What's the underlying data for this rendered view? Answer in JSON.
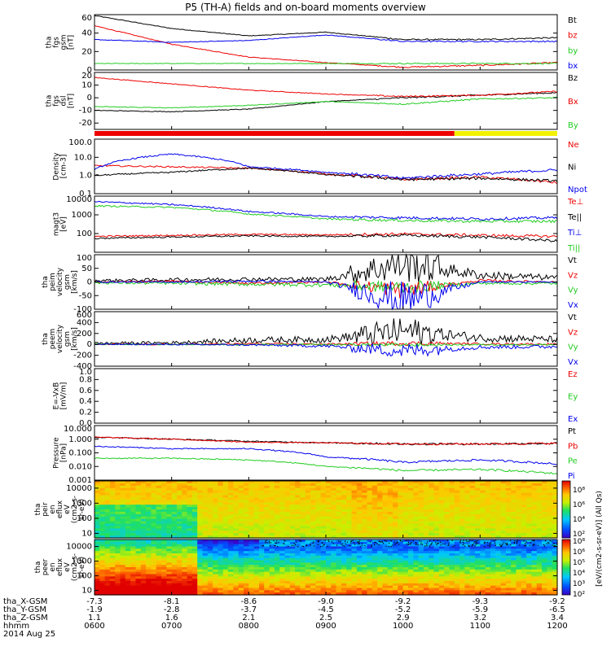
{
  "title": "P5 (TH-A) fields and on-board moments overview",
  "colors": {
    "black": "#000000",
    "red": "#ee0000",
    "green": "#22cc22",
    "blue": "#0000ee",
    "yellow": "#f2f200",
    "bar_red": "#ee0000"
  },
  "time_axis": {
    "rows": [
      {
        "label": "tha_X-GSM",
        "values": [
          "-7.3",
          "-8.1",
          "-8.6",
          "-9.0",
          "-9.2",
          "-9.3",
          "-9.2"
        ]
      },
      {
        "label": "tha_Y-GSM",
        "values": [
          "-1.9",
          "-2.8",
          "-3.7",
          "-4.5",
          "-5.2",
          "-5.9",
          "-6.5"
        ]
      },
      {
        "label": "tha_Z-GSM",
        "values": [
          "1.1",
          "1.6",
          "2.1",
          "2.5",
          "2.9",
          "3.2",
          "3.4"
        ]
      },
      {
        "label": "hhmm",
        "values": [
          "0600",
          "0700",
          "0800",
          "0900",
          "1000",
          "1100",
          "1200"
        ]
      }
    ],
    "date": "2014 Aug 25"
  },
  "mode_bar": {
    "segments": [
      {
        "color": "red",
        "from": "0600",
        "to": "1040"
      },
      {
        "color": "yellow",
        "from": "1040",
        "to": "1200"
      }
    ]
  },
  "colorbar": {
    "label": "[eV/(cm2-s-sr-eV)] (All Qs)",
    "upper_ticks": [
      "10⁸",
      "10⁶",
      "10⁴",
      "10²"
    ],
    "lower_ticks": [
      "10⁸",
      "10⁶",
      "10⁵",
      "10⁴",
      "10³",
      "10²"
    ]
  },
  "chart_data": [
    {
      "type": "line",
      "ylabel": [
        "tha",
        "fgs",
        "gsm",
        "[nT]"
      ],
      "ylim": [
        0,
        60
      ],
      "ticks": [
        "60",
        "40",
        "20",
        "0"
      ],
      "legend": [
        {
          "name": "Bt",
          "color": "black"
        },
        {
          "name": "bz",
          "color": "red"
        },
        {
          "name": "by",
          "color": "green"
        },
        {
          "name": "bx",
          "color": "blue"
        }
      ],
      "x": [
        "0600",
        "0700",
        "0800",
        "0900",
        "1000",
        "1100",
        "1200"
      ],
      "series": [
        {
          "name": "Bt",
          "color": "black",
          "values": [
            59,
            45,
            37,
            41,
            33,
            33,
            35
          ]
        },
        {
          "name": "bz",
          "color": "red",
          "values": [
            48,
            28,
            14,
            8,
            3,
            5,
            8
          ]
        },
        {
          "name": "by",
          "color": "green",
          "values": [
            7,
            7,
            7,
            7,
            7,
            7,
            7
          ]
        },
        {
          "name": "bx",
          "color": "blue",
          "values": [
            33,
            30,
            32,
            38,
            31,
            31,
            31
          ]
        }
      ]
    },
    {
      "type": "line",
      "ylabel": [
        "tha",
        "fgs",
        "dsl",
        "[nT]"
      ],
      "ylim": [
        -25,
        20
      ],
      "ticks": [
        "20",
        "10",
        "0",
        "-10",
        "-20"
      ],
      "legend": [
        {
          "name": "Bz",
          "color": "black"
        },
        {
          "name": "Bx",
          "color": "red"
        },
        {
          "name": "By",
          "color": "green"
        }
      ],
      "x": [
        "0600",
        "0700",
        "0800",
        "0900",
        "1000",
        "1100",
        "1200"
      ],
      "series": [
        {
          "name": "Bz",
          "color": "black",
          "values": [
            -10,
            -11,
            -9,
            -3,
            0,
            2,
            4
          ]
        },
        {
          "name": "Bx",
          "color": "red",
          "values": [
            16,
            11,
            6,
            3,
            1,
            2,
            5
          ]
        },
        {
          "name": "By",
          "color": "green",
          "values": [
            -7,
            -8,
            -6,
            -3,
            -5,
            -1,
            0
          ]
        }
      ]
    },
    {
      "type": "line",
      "ylabel": [
        "Density",
        "[cm-3]"
      ],
      "yscale": "log",
      "ylim": [
        0.1,
        100
      ],
      "ticks": [
        "100.0",
        "10.0",
        "1.0",
        "0.1"
      ],
      "legend": [
        {
          "name": "Ne",
          "color": "red"
        },
        {
          "name": "Ni",
          "color": "black"
        },
        {
          "name": "Npot",
          "color": "blue"
        }
      ],
      "x": [
        "0600",
        "0700",
        "0800",
        "0900",
        "1000",
        "1100",
        "1200"
      ],
      "series": [
        {
          "name": "Ne",
          "color": "red",
          "values": [
            3.5,
            3,
            2.5,
            1.2,
            0.6,
            0.8,
            0.4
          ]
        },
        {
          "name": "Ni",
          "color": "black",
          "values": [
            1,
            1.5,
            2.5,
            1.1,
            0.6,
            0.7,
            0.5
          ]
        },
        {
          "name": "Npot",
          "color": "blue",
          "values": [
            2,
            15,
            3,
            1.5,
            0.7,
            1.2,
            2
          ]
        }
      ]
    },
    {
      "type": "line",
      "ylabel": [
        "magt3",
        "[eV]"
      ],
      "yscale": "log",
      "ylim": [
        10,
        10000
      ],
      "ticks": [
        "10000",
        "1000",
        "100"
      ],
      "legend": [
        {
          "name": "Te⊥",
          "color": "red"
        },
        {
          "name": "Te||",
          "color": "black"
        },
        {
          "name": "Ti⊥",
          "color": "blue"
        },
        {
          "name": "Ti||",
          "color": "green"
        }
      ],
      "x": [
        "0600",
        "0700",
        "0800",
        "0900",
        "1000",
        "1100",
        "1200"
      ],
      "series": [
        {
          "name": "Te⊥",
          "color": "red",
          "values": [
            70,
            80,
            90,
            85,
            95,
            80,
            70
          ]
        },
        {
          "name": "Te||",
          "color": "black",
          "values": [
            55,
            65,
            75,
            70,
            80,
            65,
            40
          ]
        },
        {
          "name": "Ti⊥",
          "color": "blue",
          "values": [
            5000,
            3500,
            1500,
            800,
            700,
            600,
            700
          ]
        },
        {
          "name": "Ti||",
          "color": "green",
          "values": [
            3000,
            2500,
            1100,
            600,
            500,
            450,
            450
          ]
        }
      ]
    },
    {
      "type": "line",
      "ylabel": [
        "tha",
        "peim",
        "velocity",
        "gsm",
        "[km/s]"
      ],
      "ylim": [
        -100,
        100
      ],
      "ticks": [
        "100",
        "50",
        "0",
        "-50",
        "-100"
      ],
      "legend": [
        {
          "name": "Vt",
          "color": "black"
        },
        {
          "name": "Vz",
          "color": "red"
        },
        {
          "name": "Vy",
          "color": "green"
        },
        {
          "name": "Vx",
          "color": "blue"
        }
      ],
      "x": [
        "0600",
        "0700",
        "0800",
        "0900",
        "1000",
        "1100",
        "1200"
      ],
      "series": [
        {
          "name": "Vt",
          "color": "black",
          "values": [
            5,
            8,
            10,
            10,
            70,
            25,
            15
          ]
        },
        {
          "name": "Vz",
          "color": "red",
          "values": [
            0,
            2,
            -5,
            0,
            -30,
            5,
            0
          ]
        },
        {
          "name": "Vy",
          "color": "green",
          "values": [
            -3,
            -5,
            -8,
            -10,
            -20,
            -5,
            -5
          ]
        },
        {
          "name": "Vx",
          "color": "blue",
          "values": [
            0,
            0,
            3,
            0,
            -70,
            0,
            0
          ]
        }
      ]
    },
    {
      "type": "line",
      "ylabel": [
        "tha",
        "peem",
        "velocity",
        "gsm",
        "[km/s]"
      ],
      "ylim": [
        -400,
        600
      ],
      "ticks": [
        "600",
        "400",
        "200",
        "0",
        "-200",
        "-400"
      ],
      "legend": [
        {
          "name": "Vt",
          "color": "black"
        },
        {
          "name": "Vz",
          "color": "red"
        },
        {
          "name": "Vy",
          "color": "green"
        },
        {
          "name": "Vx",
          "color": "blue"
        }
      ],
      "x": [
        "0600",
        "0700",
        "0800",
        "0900",
        "1000",
        "1100",
        "1200"
      ],
      "series": [
        {
          "name": "Vt",
          "color": "black",
          "values": [
            20,
            30,
            80,
            90,
            250,
            120,
            90
          ]
        },
        {
          "name": "Vz",
          "color": "red",
          "values": [
            0,
            0,
            10,
            5,
            20,
            10,
            5
          ]
        },
        {
          "name": "Vy",
          "color": "green",
          "values": [
            0,
            0,
            -5,
            -5,
            -10,
            -5,
            -5
          ]
        },
        {
          "name": "Vx",
          "color": "blue",
          "values": [
            0,
            0,
            -10,
            -30,
            -120,
            -50,
            -40
          ]
        }
      ]
    },
    {
      "type": "line",
      "ylabel": [
        "E=-VxB",
        "[mV/m]"
      ],
      "ylim": [
        0,
        1
      ],
      "ticks": [
        "1.0",
        "0.8",
        "0.6",
        "0.4",
        "0.2",
        "0.0"
      ],
      "legend": [
        {
          "name": "Ez",
          "color": "red"
        },
        {
          "name": "Ey",
          "color": "green"
        },
        {
          "name": "Ex",
          "color": "blue"
        }
      ],
      "series": []
    },
    {
      "type": "line",
      "ylabel": [
        "Pressure",
        "[nPa]"
      ],
      "yscale": "log",
      "ylim": [
        0.001,
        10
      ],
      "ticks": [
        "10.000",
        "1.000",
        "0.100",
        "0.010",
        "0.001"
      ],
      "legend": [
        {
          "name": "Pt",
          "color": "black"
        },
        {
          "name": "Pb",
          "color": "red"
        },
        {
          "name": "Pe",
          "color": "green"
        },
        {
          "name": "Pi",
          "color": "blue"
        }
      ],
      "x": [
        "0600",
        "0700",
        "0800",
        "0900",
        "1000",
        "1100",
        "1200"
      ],
      "series": [
        {
          "name": "Pt",
          "color": "black",
          "values": [
            1.4,
            1,
            0.7,
            0.55,
            0.45,
            0.45,
            0.5
          ]
        },
        {
          "name": "Pb",
          "color": "red",
          "values": [
            1.4,
            1,
            0.6,
            0.55,
            0.45,
            0.45,
            0.5
          ]
        },
        {
          "name": "Pe",
          "color": "green",
          "values": [
            0.04,
            0.04,
            0.03,
            0.01,
            0.005,
            0.006,
            0.003
          ]
        },
        {
          "name": "Pi",
          "color": "blue",
          "values": [
            0.3,
            0.2,
            0.2,
            0.05,
            0.02,
            0.03,
            0.015
          ]
        }
      ]
    },
    {
      "type": "heatmap",
      "ylabel": [
        "tha",
        "peir",
        "en",
        "eflux",
        "eV",
        "(cm2-s-",
        "sr-eV)"
      ],
      "yscale": "log",
      "ylim": [
        5,
        30000
      ],
      "ticks": [
        "10000",
        "1000",
        "100",
        "10"
      ]
    },
    {
      "type": "heatmap",
      "ylabel": [
        "tha",
        "peer",
        "en",
        "eflux",
        "eV",
        "(cm2-s-",
        "sr-eV)"
      ],
      "yscale": "log",
      "ylim": [
        5,
        30000
      ],
      "ticks": [
        "10000",
        "1000",
        "100",
        "10"
      ]
    }
  ]
}
